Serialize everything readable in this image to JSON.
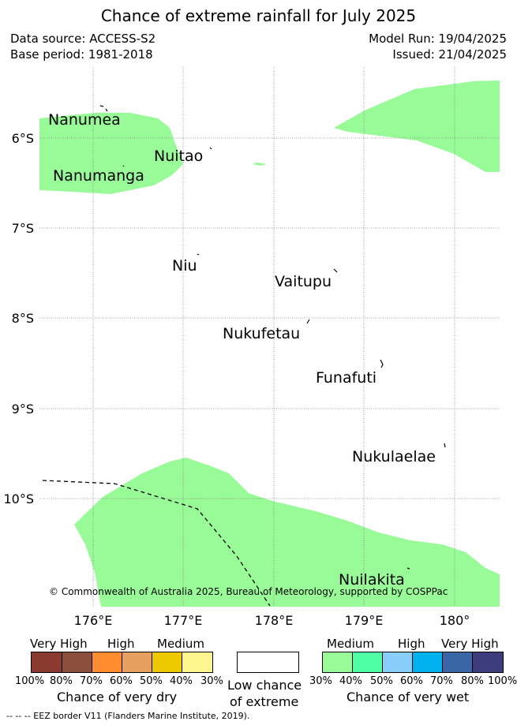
{
  "title": "Chance of extreme rainfall for July 2025",
  "meta": {
    "data_source": "Data source: ACCESS-S2",
    "base_period": "Base period: 1981-2018",
    "model_run": "Model Run: 19/04/2025",
    "issued": "Issued: 21/04/2025"
  },
  "map": {
    "lat_labels": [
      "6°S",
      "7°S",
      "8°S",
      "9°S",
      "10°S"
    ],
    "lon_labels": [
      "176°E",
      "177°E",
      "178°E",
      "179°E",
      "180°"
    ],
    "islands": [
      "Nanumea",
      "Nuitao",
      "Nanumanga",
      "Niu",
      "Vaitupu",
      "Nukufetau",
      "Funafuti",
      "Nukulaelae",
      "Nuilakita"
    ],
    "copyright": "© Commonwealth of Australia 2025, Bureau of Meteorology, supported by COSPPac",
    "shading_color": "#98fb98",
    "eez_line_color": "#000000"
  },
  "legend": {
    "dry": {
      "headers": [
        "Very High",
        "High",
        "Medium"
      ],
      "colors": [
        "#8b3a30",
        "#8b4f3d",
        "#ff8c2e",
        "#e8a060",
        "#eec900",
        "#fff68f"
      ],
      "pct_labels": [
        "100%",
        "80%",
        "70%",
        "60%",
        "50%",
        "40%",
        "30%"
      ],
      "caption": "Chance of very dry"
    },
    "low": {
      "color": "#ffffff",
      "caption_line1": "Low chance",
      "caption_line2": "of extreme"
    },
    "wet": {
      "headers": [
        "Medium",
        "High",
        "Very High"
      ],
      "colors": [
        "#98fb98",
        "#4effa5",
        "#87cefa",
        "#00b2ee",
        "#3a66a5",
        "#3d3d7d"
      ],
      "pct_labels": [
        "30%",
        "40%",
        "50%",
        "60%",
        "70%",
        "80%",
        "100%"
      ],
      "caption": "Chance of very wet"
    }
  },
  "footnote": "--  --  -- EEZ border V11 (Flanders Marine Institute, 2019)."
}
